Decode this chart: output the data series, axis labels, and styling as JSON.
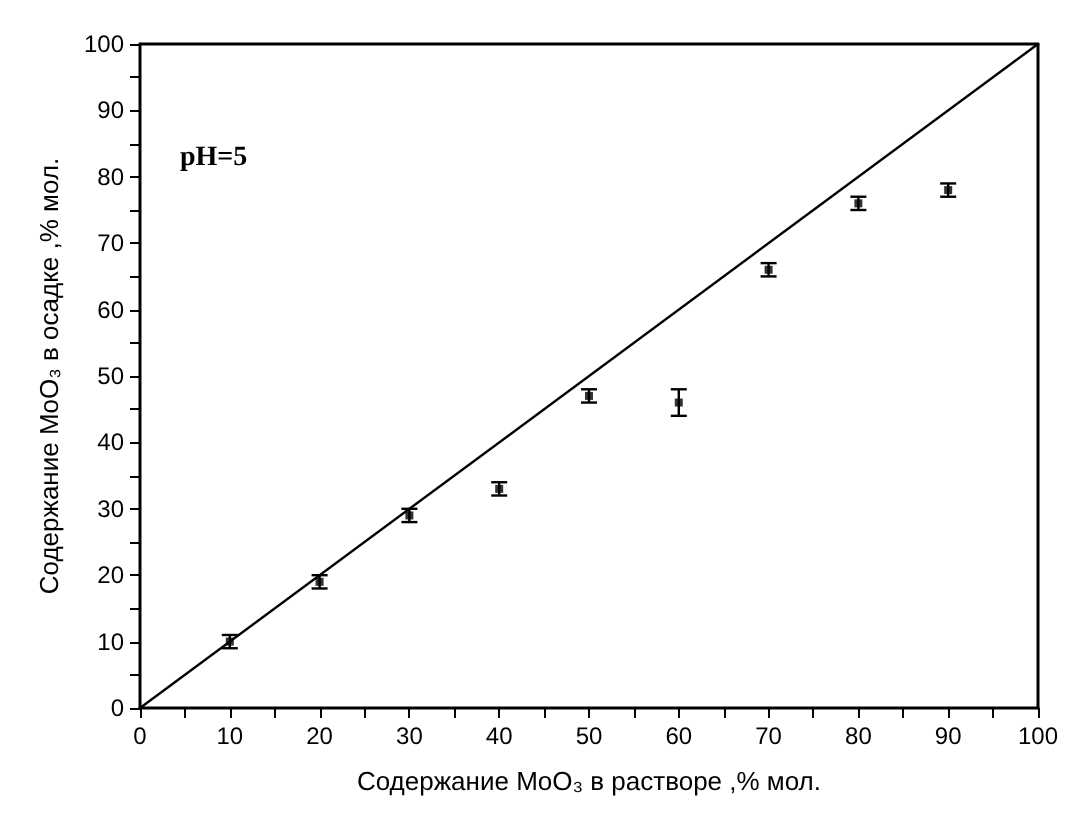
{
  "chart_data": {
    "type": "scatter",
    "xlabel": "Содержание MoO₃ в растворе ,% мол.",
    "ylabel": "Содержание MoO₃ в осадке ,% мол.",
    "annotations": [
      "pH=5"
    ],
    "xlim": [
      0,
      100
    ],
    "ylim": [
      0,
      100
    ],
    "xticks": [
      0,
      10,
      20,
      30,
      40,
      50,
      60,
      70,
      80,
      90,
      100
    ],
    "yticks": [
      0,
      10,
      20,
      30,
      40,
      50,
      60,
      70,
      80,
      90,
      100
    ],
    "grid": false,
    "marker": "square",
    "series": [
      {
        "color": "#000000",
        "x": [
          10,
          20,
          30,
          40,
          50,
          60,
          70,
          80,
          90
        ],
        "values": [
          10,
          19,
          29,
          33,
          47,
          46,
          66,
          76,
          78
        ],
        "errors": [
          1,
          1,
          1,
          1,
          1,
          2,
          1,
          1,
          1
        ]
      },
      {
        "type": "line",
        "color": "#000000",
        "x": [
          0,
          100
        ],
        "values": [
          0,
          100
        ],
        "marker": "none",
        "line_style": "solid"
      }
    ]
  }
}
